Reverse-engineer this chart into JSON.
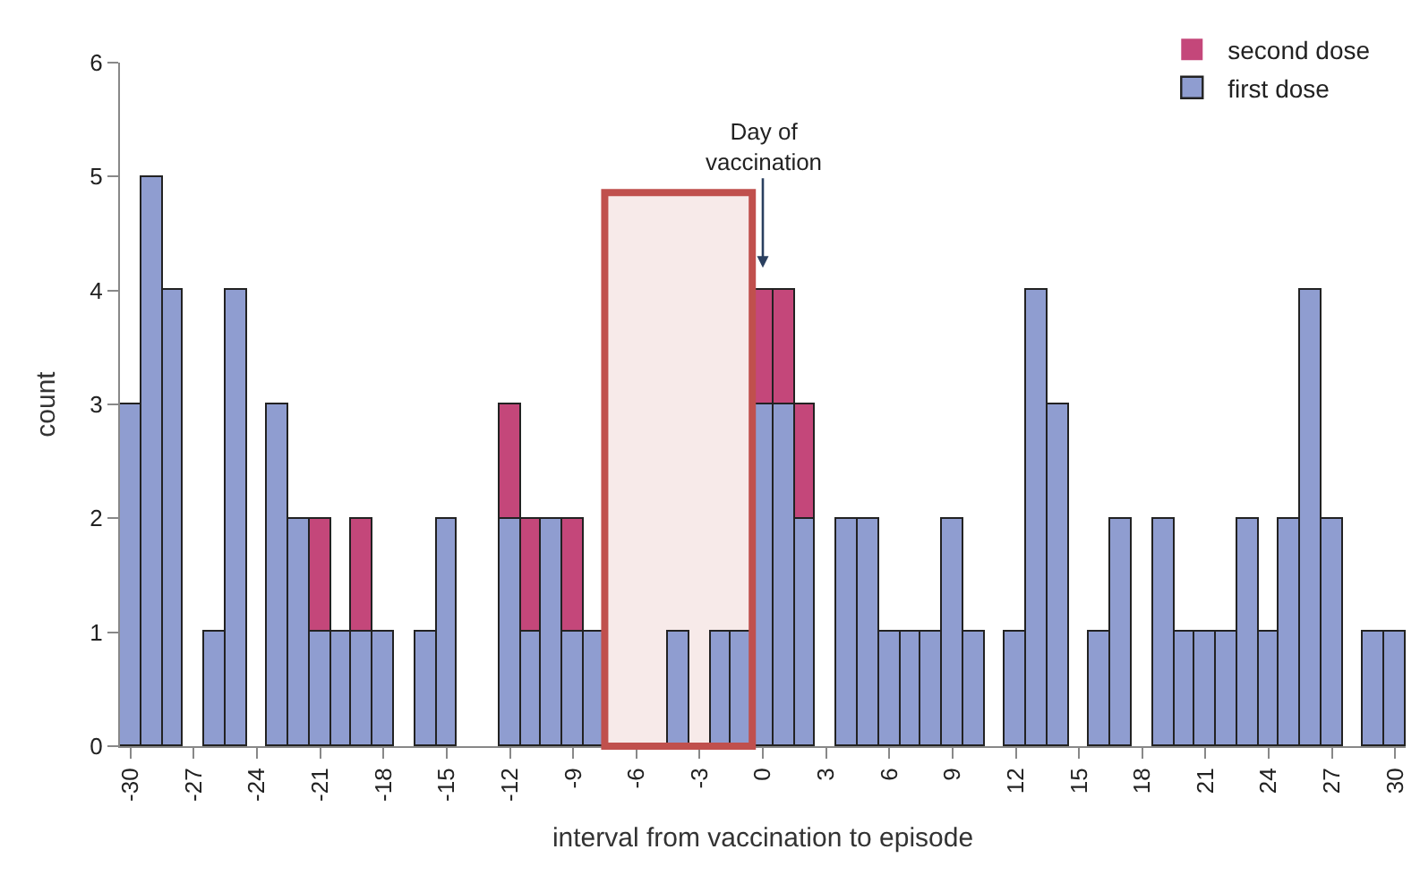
{
  "chart_data": {
    "type": "bar",
    "stacked": true,
    "xlabel": "interval from vaccination to episode",
    "ylabel": "count",
    "x": [
      -30,
      -29,
      -28,
      -27,
      -26,
      -25,
      -24,
      -23,
      -22,
      -21,
      -20,
      -19,
      -18,
      -17,
      -16,
      -15,
      -14,
      -13,
      -12,
      -11,
      -10,
      -9,
      -8,
      -7,
      -6,
      -5,
      -4,
      -3,
      -2,
      -1,
      0,
      1,
      2,
      3,
      4,
      5,
      6,
      7,
      8,
      9,
      10,
      11,
      12,
      13,
      14,
      15,
      16,
      17,
      18,
      19,
      20,
      21,
      22,
      23,
      24,
      25,
      26,
      27,
      28,
      29,
      30
    ],
    "series": [
      {
        "name": "first dose",
        "color": "#8f9dd0",
        "values": [
          3,
          5,
          4,
          0,
          1,
          4,
          0,
          3,
          2,
          1,
          1,
          1,
          1,
          0,
          1,
          2,
          0,
          0,
          2,
          1,
          2,
          1,
          1,
          0,
          0,
          0,
          1,
          0,
          1,
          1,
          3,
          3,
          2,
          0,
          2,
          2,
          1,
          1,
          1,
          2,
          1,
          0,
          1,
          4,
          3,
          0,
          1,
          2,
          0,
          2,
          1,
          1,
          1,
          2,
          1,
          2,
          4,
          2,
          0,
          1,
          1
        ]
      },
      {
        "name": "second dose",
        "color": "#c4477a",
        "values": [
          null,
          null,
          null,
          null,
          null,
          null,
          null,
          null,
          null,
          1,
          null,
          1,
          null,
          null,
          null,
          null,
          null,
          null,
          1,
          1,
          null,
          1,
          null,
          null,
          null,
          null,
          null,
          null,
          null,
          null,
          1,
          1,
          1,
          null,
          null,
          null,
          null,
          null,
          null,
          null,
          null,
          null,
          null,
          null,
          null,
          null,
          null,
          null,
          null,
          null,
          null,
          null,
          null,
          null,
          null,
          null,
          null,
          null,
          null,
          null,
          null
        ]
      }
    ],
    "xlim": [
      -30.5,
      30.5
    ],
    "xticks": [
      -30,
      -27,
      -24,
      -21,
      -18,
      -15,
      -12,
      -9,
      -6,
      -3,
      0,
      3,
      6,
      9,
      12,
      15,
      18,
      21,
      24,
      27,
      30
    ],
    "ylim": [
      0,
      6
    ],
    "yticks": [
      0,
      1,
      2,
      3,
      4,
      5,
      6
    ],
    "annotations": [
      "Day of\nvaccination"
    ],
    "bands": [
      {
        "axis": "x",
        "from": -7.5,
        "to": -0.5,
        "color": "#c0504d"
      }
    ],
    "legend": "top right",
    "grid": false
  }
}
